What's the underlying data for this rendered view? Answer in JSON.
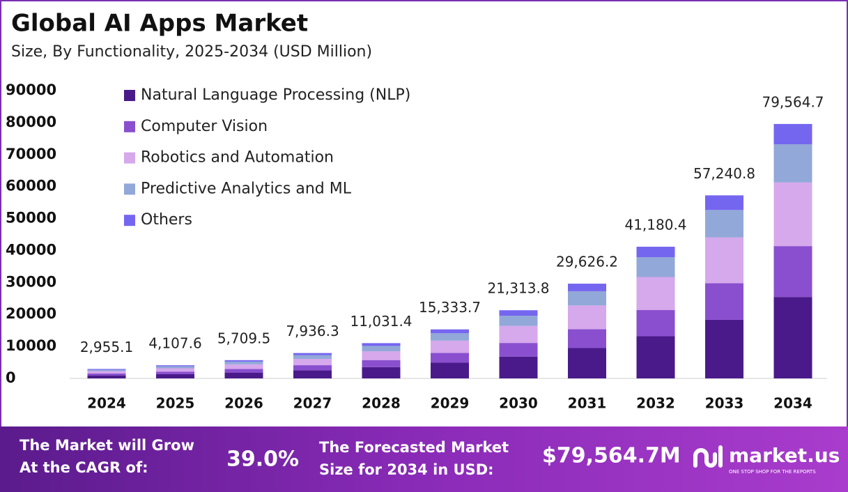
{
  "chart_data": {
    "type": "stacked_bar",
    "title": "Global AI Apps Market",
    "subtitle": "Size, By Functionality, 2025-2034 (USD Million)",
    "categories": [
      "2024",
      "2025",
      "2026",
      "2027",
      "2028",
      "2029",
      "2030",
      "2031",
      "2032",
      "2033",
      "2034"
    ],
    "series": [
      {
        "name": "Natural Language Processing (NLP)",
        "color": "#4a1a8a",
        "values": [
          946,
          1314,
          1827,
          2540,
          3530,
          4907,
          6820,
          9480,
          13178,
          18317,
          25461
        ]
      },
      {
        "name": "Computer Vision",
        "color": "#8a4fcf",
        "values": [
          591,
          822,
          1142,
          1587,
          2206,
          3067,
          4263,
          5925,
          8236,
          11448,
          15913
        ]
      },
      {
        "name": "Robotics and Automation",
        "color": "#d6a8ec",
        "values": [
          739,
          1027,
          1427,
          1984,
          2758,
          3833,
          5328,
          7407,
          10295,
          14310,
          19891
        ]
      },
      {
        "name": "Predictive Analytics and ML",
        "color": "#92a8d8",
        "values": [
          443,
          616,
          856,
          1190,
          1655,
          2300,
          3197,
          4444,
          6177,
          8586,
          11935
        ]
      },
      {
        "name": "Others",
        "color": "#7566f0",
        "values": [
          236,
          329,
          457,
          635,
          883,
          1227,
          1705,
          2370,
          3294,
          4579,
          6365
        ]
      }
    ],
    "totals": [
      2955.1,
      4107.6,
      5709.5,
      7936.3,
      11031.4,
      15333.7,
      21313.8,
      29626.2,
      41180.4,
      57240.8,
      79564.7
    ],
    "total_labels": [
      "2,955.1",
      "4,107.6",
      "5,709.5",
      "7,936.3",
      "11,031.4",
      "15,333.7",
      "21,313.8",
      "29,626.2",
      "41,180.4",
      "57,240.8",
      "79,564.7"
    ],
    "ylim": [
      0,
      90000
    ],
    "yticks": [
      0,
      10000,
      20000,
      30000,
      40000,
      50000,
      60000,
      70000,
      80000,
      90000
    ],
    "legend": "top-left"
  },
  "footer": {
    "cagr_text": [
      "The Market will Grow",
      "At the CAGR of:"
    ],
    "cagr": "39.0%",
    "forecast_text": [
      "The Forecasted Market",
      "Size for 2034 in USD:"
    ],
    "forecast": "$79,564.7M",
    "brand": "market.us",
    "tagline": "ONE STOP SHOP FOR THE REPORTS"
  }
}
